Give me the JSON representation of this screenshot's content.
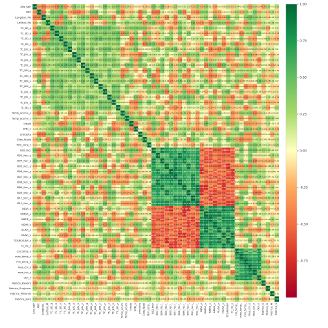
{
  "chart_data": {
    "type": "heatmap",
    "title": "",
    "xlabel": "",
    "ylabel": "",
    "labels": [
      "Ano_safr",
      "ABC",
      "Longitud_Mu",
      "Latitud_Mu",
      "TC_SD_g",
      "TC_SD_p",
      "TC_SD_x",
      "TC_SD_y",
      "TC_JUL_g",
      "TC_JUL_p",
      "TC_JUL_x",
      "TC_JUL_y",
      "TC_JUN_g",
      "TC_JUN_p",
      "TC_JUN_x",
      "TC_JUN_y",
      "TC_JUL_y",
      "TC_JUL_x",
      "TC_JUL_p",
      "TC_SD_y",
      "Temp_acumu_y",
      "Temp_acumu_x",
      "Insola",
      "SPEI_n",
      "precipita",
      "Dias_Nubla",
      "Tem_cerp_n",
      "B02_fecr",
      "B03_fecr_p",
      "B04_fecr_p",
      "B05_fecr_p",
      "B06_fecr_p",
      "B07_fecr_p",
      "B08_fecr_p",
      "B8A_fecr_p",
      "B09_fecr_p",
      "B11_fecr_p",
      "B12_fecr_p",
      "NDVI_x",
      "GNDVI_x",
      "NDRE_x",
      "NDWI_x",
      "SLAVI_x",
      "OSAVI_x",
      "TCARIOSAVI_x",
      "CI_clo_x",
      "cal_temp_n",
      "max_temp_x",
      "min_temp_x",
      "mea_cor_x",
      "mea_cor_y",
      "dev_x",
      "Fabrica_Xaxeiro",
      "Fabrica_Guajuvier",
      "Fabrica_Minarelo",
      "Fabrica_Soro"
    ],
    "matrix_generation": "symmetric correlation matrix, diagonal = 1.0, cell values printed as two-decimal annotations",
    "colorscale": "RdYlGn",
    "vmin": -1.0,
    "vmax": 1.0,
    "colorbar_ticks": [
      1.0,
      0.75,
      0.5,
      0.25,
      0.0,
      -0.25,
      -0.5,
      -0.75
    ],
    "colorbar_tick_labels": [
      "1.00",
      "0.75",
      "0.50",
      "0.25",
      "0.00",
      "-0.25",
      "-0.50",
      "-0.75"
    ],
    "annotated": true,
    "grid": true,
    "legend": "colorbar-right"
  }
}
